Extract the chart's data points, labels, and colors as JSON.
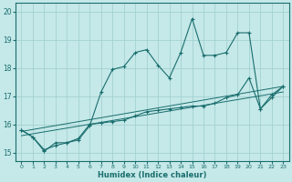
{
  "xlabel": "Humidex (Indice chaleur)",
  "bg_color": "#c5e8e8",
  "grid_color": "#9ecece",
  "line_color": "#1a6e6e",
  "xlim": [
    -0.5,
    23.5
  ],
  "ylim": [
    14.7,
    20.3
  ],
  "xticks": [
    0,
    1,
    2,
    3,
    4,
    5,
    6,
    7,
    8,
    9,
    10,
    11,
    12,
    13,
    14,
    15,
    16,
    17,
    18,
    19,
    20,
    21,
    22,
    23
  ],
  "yticks": [
    15,
    16,
    17,
    18,
    19,
    20
  ],
  "series1_x": [
    0,
    1,
    2,
    3,
    4,
    5,
    6,
    7,
    8,
    9,
    10,
    11,
    12,
    13,
    14,
    15,
    16,
    17,
    18,
    19,
    20,
    21,
    22,
    23
  ],
  "series1_y": [
    15.8,
    15.55,
    15.05,
    15.35,
    15.35,
    15.45,
    15.95,
    17.15,
    17.95,
    18.05,
    18.55,
    18.65,
    18.1,
    17.65,
    18.55,
    19.75,
    18.45,
    18.45,
    18.55,
    19.25,
    19.25,
    16.55,
    16.95,
    17.35
  ],
  "series2_x": [
    0,
    1,
    2,
    3,
    4,
    5,
    6,
    7,
    8,
    9,
    10,
    11,
    12,
    13,
    14,
    15,
    16,
    17,
    18,
    19,
    20,
    21,
    22,
    23
  ],
  "series2_y": [
    15.8,
    15.55,
    15.1,
    15.25,
    15.35,
    15.5,
    16.0,
    16.05,
    16.1,
    16.15,
    16.3,
    16.45,
    16.5,
    16.55,
    16.6,
    16.65,
    16.65,
    16.75,
    16.95,
    17.05,
    17.65,
    16.55,
    17.05,
    17.35
  ],
  "trend1_x": [
    0,
    23
  ],
  "trend1_y": [
    15.75,
    17.35
  ],
  "trend2_x": [
    0,
    23
  ],
  "trend2_y": [
    15.6,
    17.15
  ]
}
